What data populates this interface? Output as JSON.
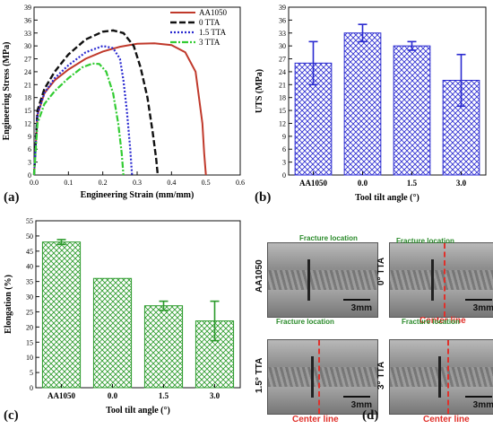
{
  "panels": {
    "a": {
      "label": "(a)"
    },
    "b": {
      "label": "(b)"
    },
    "c": {
      "label": "(c)"
    },
    "d": {
      "label": "(d)"
    }
  },
  "chart_data": [
    {
      "id": "a",
      "type": "line",
      "xlabel": "Engineering Strain (mm/mm)",
      "ylabel": "Engineering Stress (MPa)",
      "xlim": [
        0.0,
        0.6
      ],
      "ylim": [
        0,
        39
      ],
      "xticks": [
        "0.0",
        "0.1",
        "0.2",
        "0.3",
        "0.4",
        "0.5",
        "0.6"
      ],
      "yticks": [
        "0",
        "3",
        "6",
        "9",
        "12",
        "15",
        "18",
        "21",
        "24",
        "27",
        "30",
        "33",
        "36",
        "39"
      ],
      "legend_position": "top-right",
      "colors": {
        "AA1050": "#c0392b",
        "0 TTA": "#111111",
        "1.5 TTA": "#2a2ad0",
        "3 TTA": "#33cc33"
      },
      "series": [
        {
          "name": "AA1050",
          "x": [
            0.0,
            0.01,
            0.03,
            0.06,
            0.1,
            0.15,
            0.2,
            0.25,
            0.3,
            0.35,
            0.4,
            0.44,
            0.47,
            0.49,
            0.495,
            0.5
          ],
          "y": [
            0,
            14,
            19,
            22,
            24.5,
            27,
            28.7,
            29.8,
            30.5,
            30.6,
            30.2,
            28.5,
            24,
            12,
            5,
            0
          ]
        },
        {
          "name": "0 TTA",
          "x": [
            0.0,
            0.01,
            0.03,
            0.06,
            0.1,
            0.15,
            0.2,
            0.23,
            0.26,
            0.29,
            0.31,
            0.33,
            0.345,
            0.355,
            0.36
          ],
          "y": [
            0,
            15,
            20,
            24,
            28,
            31.5,
            33.3,
            33.6,
            33,
            30,
            25,
            18,
            10,
            4,
            0
          ]
        },
        {
          "name": "1.5 TTA",
          "x": [
            0.0,
            0.01,
            0.03,
            0.06,
            0.1,
            0.15,
            0.2,
            0.23,
            0.25,
            0.26,
            0.27,
            0.28,
            0.285
          ],
          "y": [
            0,
            14,
            19,
            22.5,
            25.5,
            28.5,
            30,
            29.5,
            27,
            22,
            15,
            6,
            0
          ]
        },
        {
          "name": "3 TTA",
          "x": [
            0.0,
            0.01,
            0.03,
            0.06,
            0.1,
            0.14,
            0.17,
            0.19,
            0.21,
            0.23,
            0.245,
            0.255,
            0.26
          ],
          "y": [
            0,
            12,
            16.5,
            19.5,
            22.5,
            25,
            25.9,
            25.8,
            24,
            19,
            12,
            5,
            0
          ]
        }
      ]
    },
    {
      "id": "b",
      "type": "bar",
      "xlabel": "Tool tilt angle (°)",
      "ylabel": "UTS (MPa)",
      "ylim": [
        0,
        39
      ],
      "yticks": [
        "0",
        "3",
        "6",
        "9",
        "12",
        "15",
        "18",
        "21",
        "24",
        "27",
        "30",
        "33",
        "36",
        "39"
      ],
      "categories": [
        "AA1050",
        "0.0",
        "1.5",
        "3.0"
      ],
      "values": [
        26,
        33,
        30,
        22
      ],
      "errors": [
        5,
        2,
        1,
        6
      ],
      "color": "#2a2ad0"
    },
    {
      "id": "c",
      "type": "bar",
      "xlabel": "Tool tilt angle (°)",
      "ylabel": "Elongation (%)",
      "ylim": [
        0,
        55
      ],
      "yticks": [
        "0",
        "5",
        "10",
        "15",
        "20",
        "25",
        "30",
        "35",
        "40",
        "45",
        "50",
        "55"
      ],
      "categories": [
        "AA1050",
        "0.0",
        "1.5",
        "3.0"
      ],
      "values": [
        48,
        36,
        27,
        22
      ],
      "errors": [
        0.8,
        0,
        1.5,
        6.5
      ],
      "color": "#2a9a2a"
    }
  ],
  "fracture_images": [
    {
      "row_label": "AA1050",
      "fracture_label": "Fracture location",
      "scale": "3mm",
      "center_label": ""
    },
    {
      "row_label": "0° TTA",
      "fracture_label": "Fracture location",
      "scale": "3mm",
      "center_label": "Center line"
    },
    {
      "row_label": "1.5° TTA",
      "fracture_label": "Fracture location",
      "scale": "3mm",
      "center_label": "Center line"
    },
    {
      "row_label": "3° TTA",
      "fracture_label": "Fracture location",
      "scale": "3mm",
      "center_label": "Center line"
    }
  ]
}
